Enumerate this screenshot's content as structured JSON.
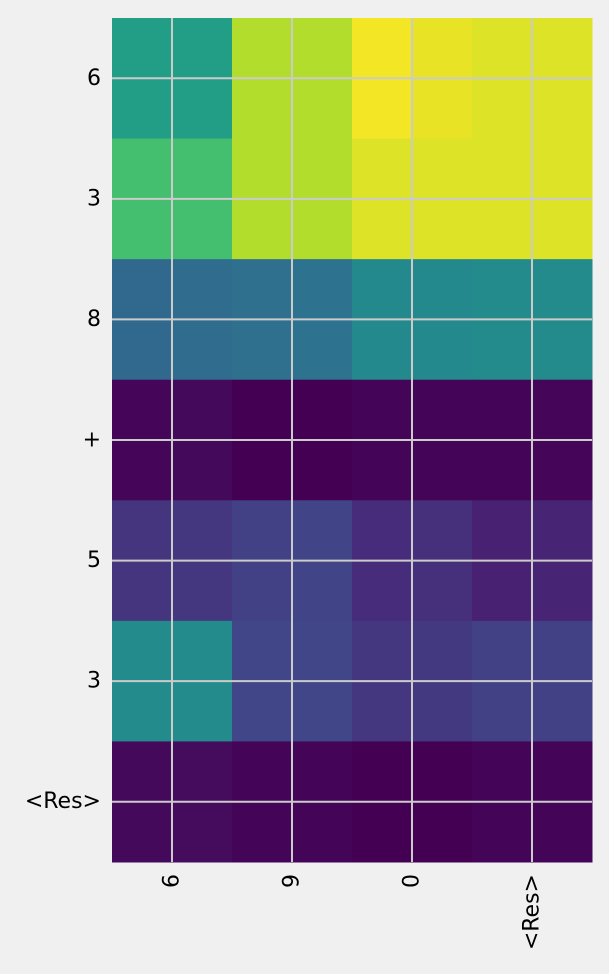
{
  "chart_data": {
    "type": "heatmap",
    "title": "",
    "xlabel": "",
    "ylabel": "",
    "x_ticks": [
      "6",
      "9",
      "0",
      "<Res>"
    ],
    "y_ticks": [
      "6",
      "3",
      "8",
      "+",
      "5",
      "3",
      "<Res>"
    ],
    "grid": true,
    "colormap": "viridis",
    "value_range": [
      0,
      1
    ],
    "values": [
      [
        0.7,
        0.7,
        0.93,
        0.93,
        0.99,
        0.98,
        0.97,
        0.97
      ],
      [
        0.82,
        0.82,
        0.93,
        0.93,
        0.97,
        0.97,
        0.97,
        0.97
      ],
      [
        0.43,
        0.44,
        0.46,
        0.47,
        0.59,
        0.59,
        0.6,
        0.6
      ],
      [
        0.02,
        0.03,
        0.0,
        0.0,
        0.01,
        0.01,
        0.01,
        0.02
      ],
      [
        0.19,
        0.2,
        0.24,
        0.25,
        0.16,
        0.17,
        0.12,
        0.13
      ],
      [
        0.6,
        0.6,
        0.26,
        0.26,
        0.2,
        0.21,
        0.24,
        0.24
      ],
      [
        0.03,
        0.04,
        0.01,
        0.01,
        0.0,
        0.0,
        0.01,
        0.01
      ]
    ]
  }
}
